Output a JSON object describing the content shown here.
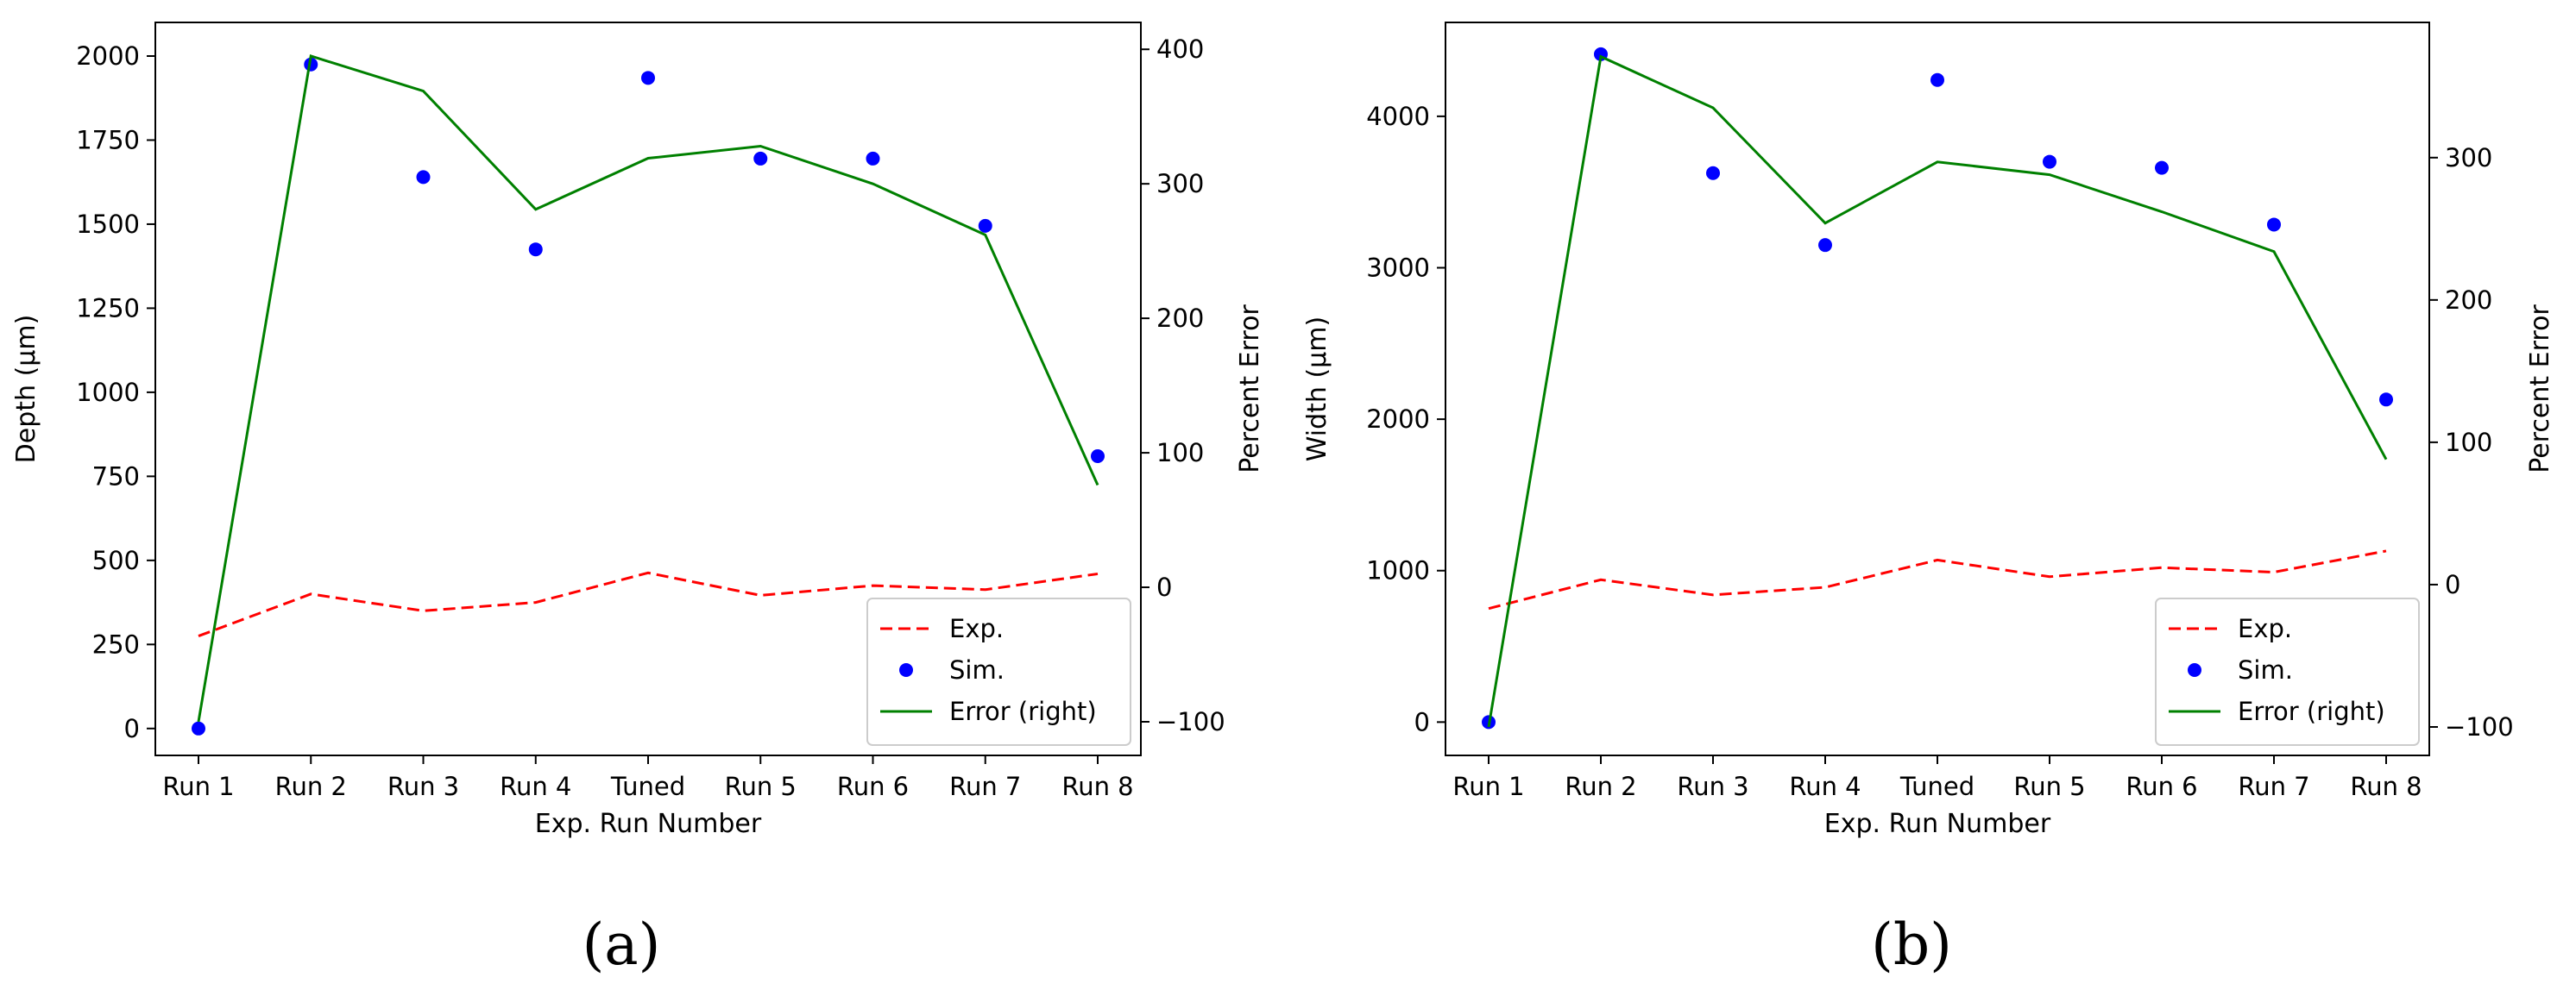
{
  "colors": {
    "exp": "#ff0000",
    "sim": "#0000ff",
    "error": "#008000",
    "axis": "#000000"
  },
  "chart_data": [
    {
      "type": "line",
      "panel_label": "(a)",
      "categories": [
        "Run 1",
        "Run 2",
        "Run 3",
        "Run 4",
        "Tuned",
        "Run 5",
        "Run 6",
        "Run 7",
        "Run 8"
      ],
      "xlabel": "Exp. Run Number",
      "ylabel": "Depth  (μm)",
      "ylabel_right": "Percent Error",
      "ylim": [
        -80,
        2100
      ],
      "ylim_right": [
        -125,
        420
      ],
      "yticks": [
        0,
        250,
        500,
        750,
        1000,
        1250,
        1500,
        1750,
        2000
      ],
      "yticks_right": [
        -100,
        0,
        100,
        200,
        300,
        400
      ],
      "legend_position": "lower-right",
      "grid": false,
      "series": [
        {
          "name": "Exp.",
          "style": "dashed-line",
          "axis": "left",
          "values": [
            275,
            400,
            350,
            375,
            463,
            396,
            425,
            413,
            460
          ]
        },
        {
          "name": "Sim.",
          "style": "scatter",
          "axis": "left",
          "values": [
            0,
            1975,
            1640,
            1425,
            1935,
            1695,
            1695,
            1495,
            810
          ]
        },
        {
          "name": "Error (right)",
          "style": "solid-line",
          "axis": "right",
          "values": [
            -100,
            395,
            369,
            281,
            319,
            328,
            300,
            262,
            76
          ]
        }
      ]
    },
    {
      "type": "line",
      "panel_label": "(b)",
      "categories": [
        "Run 1",
        "Run 2",
        "Run 3",
        "Run 4",
        "Tuned",
        "Run 5",
        "Run 6",
        "Run 7",
        "Run 8"
      ],
      "xlabel": "Exp. Run Number",
      "ylabel": "Width  (μm)",
      "ylabel_right": "Percent Error",
      "ylim": [
        -220,
        4620
      ],
      "ylim_right": [
        -120,
        395
      ],
      "yticks": [
        0,
        1000,
        2000,
        3000,
        4000
      ],
      "yticks_right": [
        -100,
        0,
        100,
        200,
        300
      ],
      "legend_position": "lower-right",
      "grid": false,
      "series": [
        {
          "name": "Exp.",
          "style": "dashed-line",
          "axis": "left",
          "values": [
            750,
            940,
            840,
            890,
            1070,
            960,
            1020,
            990,
            1130
          ]
        },
        {
          "name": "Sim.",
          "style": "scatter",
          "axis": "left",
          "values": [
            0,
            4410,
            3625,
            3150,
            4240,
            3700,
            3660,
            3285,
            2130
          ]
        },
        {
          "name": "Error (right)",
          "style": "solid-line",
          "axis": "right",
          "values": [
            -100,
            371,
            335,
            254,
            297,
            288,
            262,
            234,
            88
          ]
        }
      ]
    }
  ]
}
